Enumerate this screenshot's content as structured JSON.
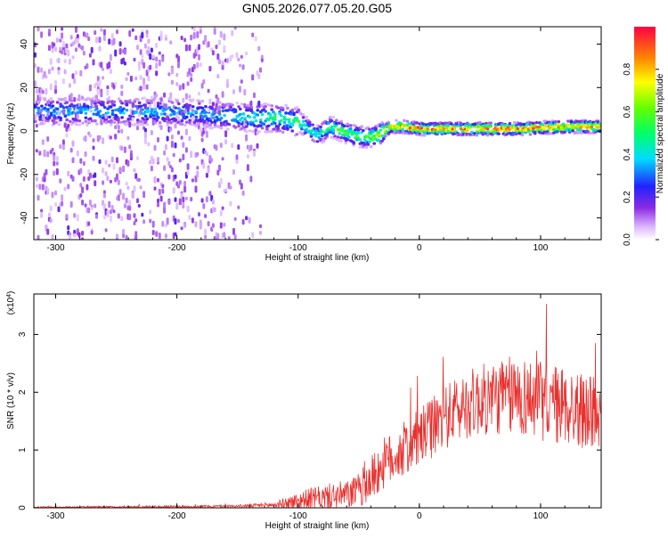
{
  "title": "GN05.2026.077.05.20.G05",
  "chart_data": [
    {
      "type": "heatmap",
      "title": "GN05.2026.077.05.20.G05",
      "xlabel": "Height of straight line (km)",
      "ylabel": "Frequency (Hz)",
      "xlim": [
        -318,
        150
      ],
      "ylim": [
        -50,
        48
      ],
      "xticks": [
        -300,
        -200,
        -100,
        0,
        100
      ],
      "yticks": [
        -40,
        -20,
        0,
        20,
        40
      ],
      "colorbar": {
        "label": "Normalized spectral amplitude",
        "range": [
          0,
          1
        ],
        "ticks": [
          "0.0",
          "0.2",
          "0.4",
          "0.6",
          "0.8"
        ]
      },
      "ridge": {
        "x": [
          -318,
          -300,
          -260,
          -220,
          -180,
          -140,
          -120,
          -100,
          -85,
          -75,
          -65,
          -55,
          -45,
          -35,
          -25,
          -15,
          0,
          40,
          80,
          120,
          150
        ],
        "freq_hz": [
          9,
          9,
          9,
          9,
          8,
          6,
          6,
          4,
          -2,
          2,
          0,
          -2,
          -3,
          -2,
          2,
          2,
          1,
          1,
          1,
          2,
          2
        ],
        "peak_amplitude": [
          0.35,
          0.38,
          0.38,
          0.38,
          0.38,
          0.45,
          0.5,
          0.55,
          0.45,
          0.55,
          0.6,
          0.6,
          0.6,
          0.75,
          0.85,
          0.9,
          0.95,
          0.95,
          0.95,
          0.9,
          0.9
        ]
      }
    },
    {
      "type": "line",
      "xlabel": "Height of straight line (km)",
      "ylabel": "SNR (10 * v/v)",
      "yscale_label": "(x10",
      "yscale_exp": "4",
      "xlim": [
        -318,
        150
      ],
      "ylim": [
        0,
        3.7
      ],
      "xticks": [
        -300,
        -200,
        -100,
        0,
        100
      ],
      "yticks": [
        0,
        1,
        2,
        3
      ],
      "color": "#e8302e",
      "envelope": {
        "x": [
          -318,
          -200,
          -150,
          -120,
          -110,
          -100,
          -90,
          -80,
          -70,
          -60,
          -50,
          -40,
          -30,
          -20,
          -10,
          0,
          20,
          40,
          60,
          80,
          100,
          120,
          140,
          150
        ],
        "mean": [
          0.01,
          0.02,
          0.03,
          0.05,
          0.08,
          0.12,
          0.15,
          0.18,
          0.2,
          0.22,
          0.3,
          0.5,
          0.75,
          0.9,
          1.05,
          1.2,
          1.55,
          1.8,
          1.9,
          1.95,
          1.85,
          1.75,
          1.65,
          1.6
        ],
        "spread": [
          0.01,
          0.02,
          0.02,
          0.05,
          0.1,
          0.15,
          0.2,
          0.2,
          0.25,
          0.25,
          0.3,
          0.4,
          0.45,
          0.45,
          0.5,
          0.5,
          0.55,
          0.6,
          0.65,
          0.7,
          0.7,
          0.7,
          0.65,
          0.6
        ],
        "max": 3.65
      }
    }
  ]
}
